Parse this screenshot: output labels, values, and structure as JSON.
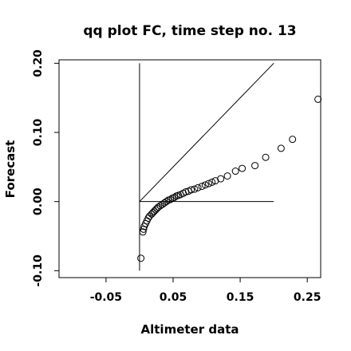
{
  "chart_data": {
    "type": "scatter",
    "title": "qq plot FC, time step no. 13",
    "xlabel": "Altimeter data",
    "ylabel": "Forecast",
    "xlim": [
      -0.12,
      0.27
    ],
    "ylim": [
      -0.11,
      0.205
    ],
    "x_ticks": [
      -0.05,
      0.05,
      0.15,
      0.25
    ],
    "x_tick_labels": [
      "-0.05",
      "0.05",
      "0.15",
      "0.25"
    ],
    "y_ticks": [
      -0.1,
      0.0,
      0.1,
      0.2
    ],
    "y_tick_labels": [
      "-0.10",
      "0.00",
      "0.10",
      "0.20"
    ],
    "grid": false,
    "reference_lines": [
      {
        "x": [
          0.0,
          0.2
        ],
        "y": [
          0.0,
          0.2
        ]
      },
      {
        "x": [
          0.0,
          0.2
        ],
        "y": [
          0.0,
          0.0
        ]
      },
      {
        "x": [
          0.0,
          0.0
        ],
        "y": [
          -0.1,
          0.2
        ]
      }
    ],
    "points": [
      {
        "x": 0.002,
        "y": -0.082
      },
      {
        "x": 0.005,
        "y": -0.044
      },
      {
        "x": 0.006,
        "y": -0.04
      },
      {
        "x": 0.007,
        "y": -0.036
      },
      {
        "x": 0.009,
        "y": -0.032
      },
      {
        "x": 0.011,
        "y": -0.028
      },
      {
        "x": 0.013,
        "y": -0.024
      },
      {
        "x": 0.015,
        "y": -0.021
      },
      {
        "x": 0.018,
        "y": -0.018
      },
      {
        "x": 0.02,
        "y": -0.016
      },
      {
        "x": 0.022,
        "y": -0.014
      },
      {
        "x": 0.024,
        "y": -0.012
      },
      {
        "x": 0.026,
        "y": -0.01
      },
      {
        "x": 0.028,
        "y": -0.008
      },
      {
        "x": 0.031,
        "y": -0.006
      },
      {
        "x": 0.034,
        "y": -0.004
      },
      {
        "x": 0.037,
        "y": -0.002
      },
      {
        "x": 0.04,
        "y": 0.0
      },
      {
        "x": 0.043,
        "y": 0.002
      },
      {
        "x": 0.046,
        "y": 0.003
      },
      {
        "x": 0.049,
        "y": 0.005
      },
      {
        "x": 0.052,
        "y": 0.006
      },
      {
        "x": 0.055,
        "y": 0.008
      },
      {
        "x": 0.058,
        "y": 0.009
      },
      {
        "x": 0.061,
        "y": 0.01
      },
      {
        "x": 0.065,
        "y": 0.012
      },
      {
        "x": 0.069,
        "y": 0.014
      },
      {
        "x": 0.073,
        "y": 0.015
      },
      {
        "x": 0.077,
        "y": 0.017
      },
      {
        "x": 0.082,
        "y": 0.018
      },
      {
        "x": 0.087,
        "y": 0.02
      },
      {
        "x": 0.093,
        "y": 0.022
      },
      {
        "x": 0.098,
        "y": 0.024
      },
      {
        "x": 0.103,
        "y": 0.026
      },
      {
        "x": 0.108,
        "y": 0.028
      },
      {
        "x": 0.113,
        "y": 0.03
      },
      {
        "x": 0.121,
        "y": 0.033
      },
      {
        "x": 0.131,
        "y": 0.037
      },
      {
        "x": 0.143,
        "y": 0.044
      },
      {
        "x": 0.153,
        "y": 0.048
      },
      {
        "x": 0.172,
        "y": 0.052
      },
      {
        "x": 0.188,
        "y": 0.064
      },
      {
        "x": 0.211,
        "y": 0.077
      },
      {
        "x": 0.228,
        "y": 0.09
      },
      {
        "x": 0.266,
        "y": 0.148
      }
    ]
  }
}
